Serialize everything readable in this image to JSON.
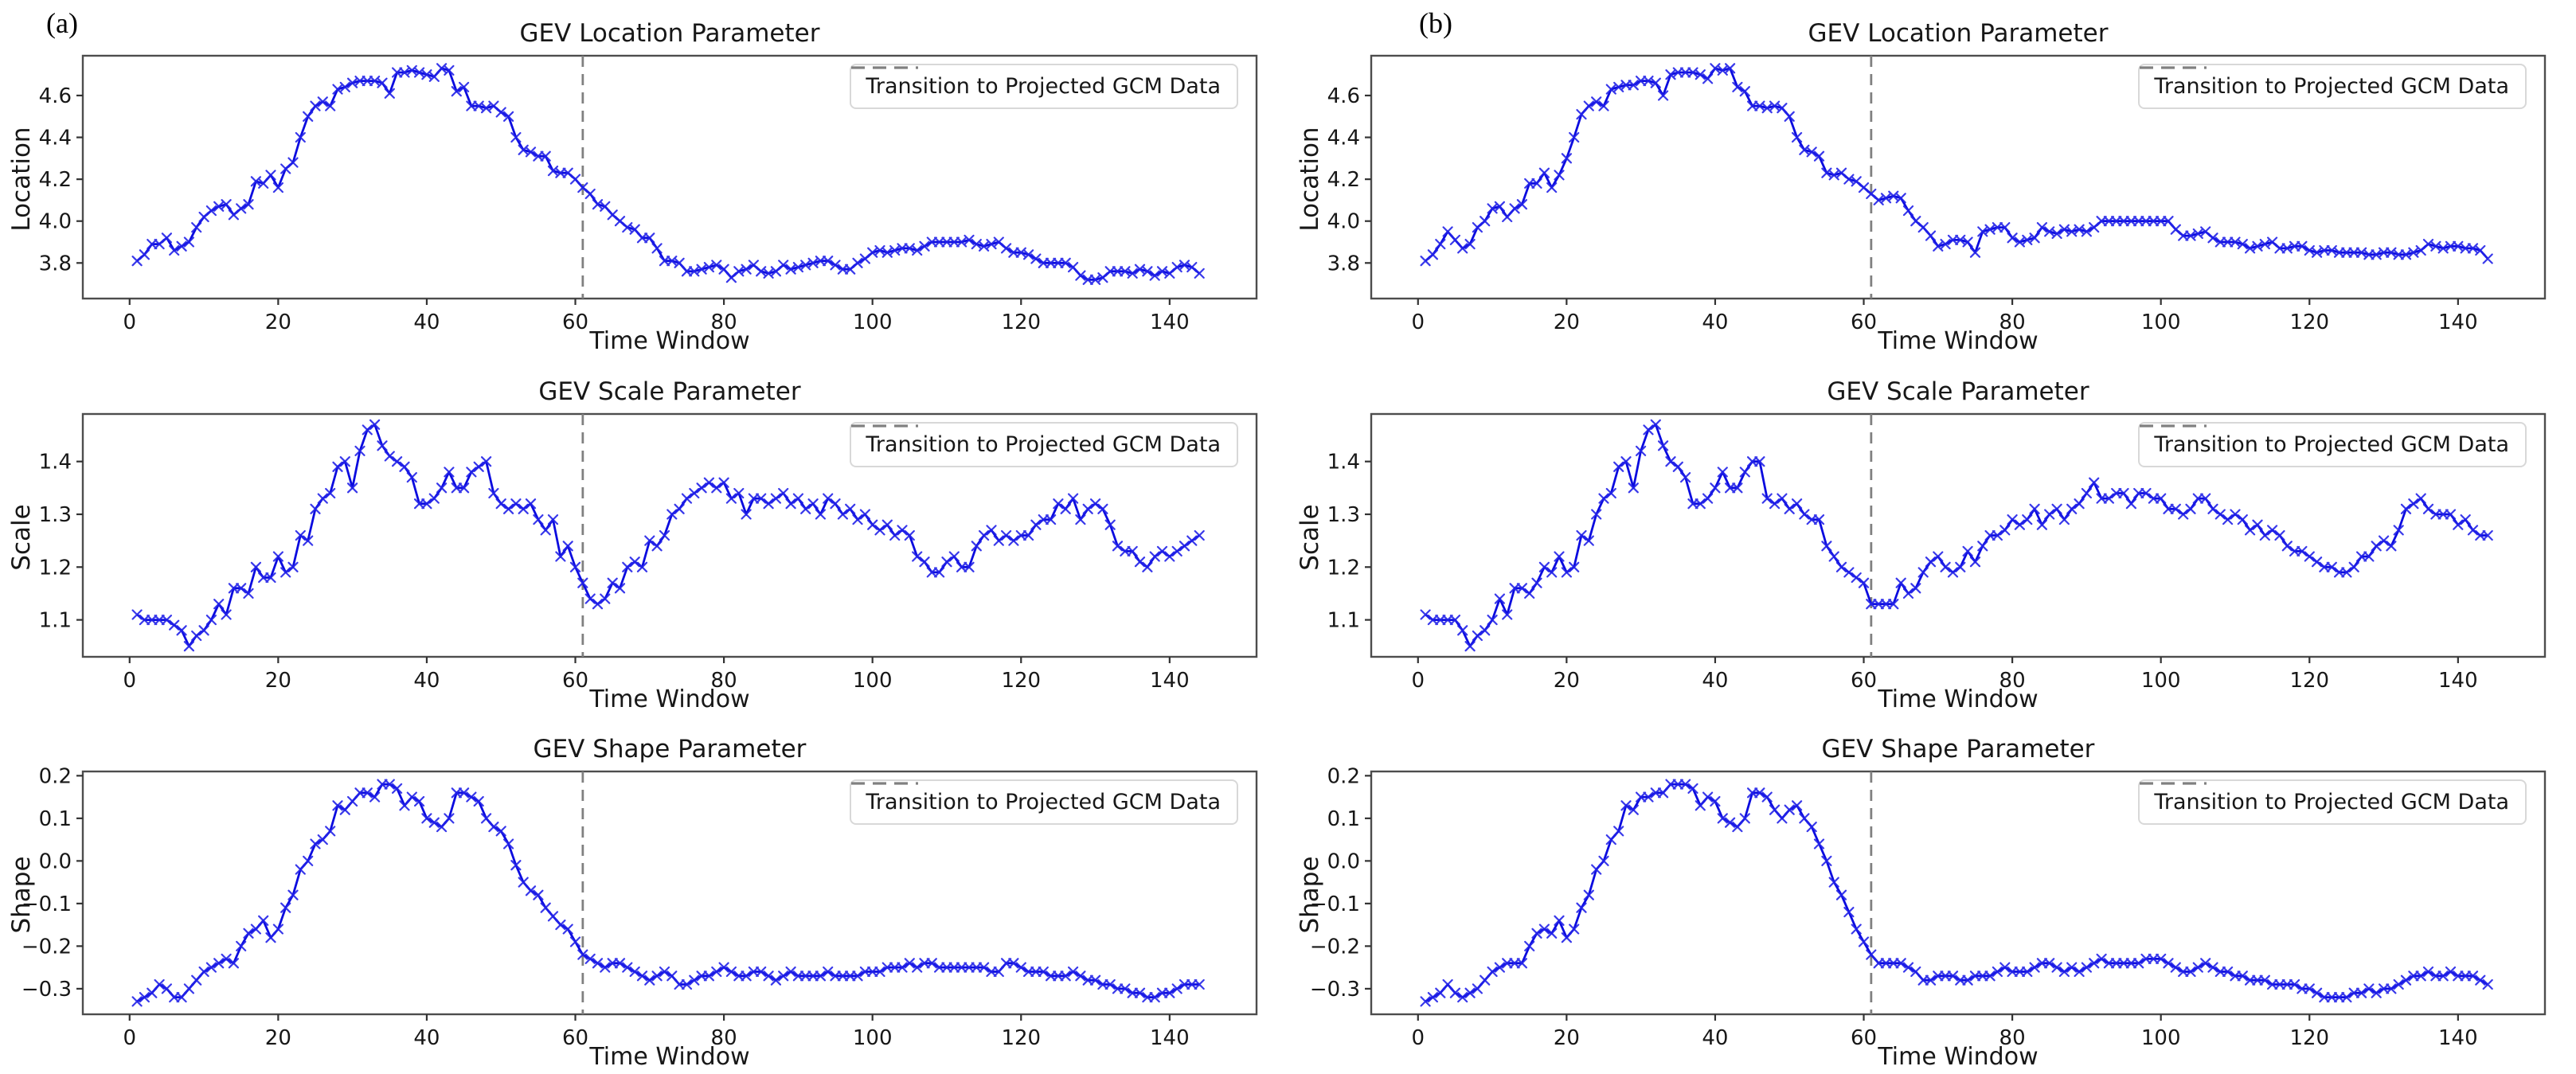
{
  "figure": {
    "background": "#ffffff",
    "panels": [
      {
        "label": "(a)"
      },
      {
        "label": "(b)"
      }
    ]
  },
  "legend": {
    "label": "Transition to Projected GCM Data"
  },
  "colors": {
    "line": "#0b0bdf",
    "marker": "#2222e8",
    "transition_line": "#808080",
    "spine": "#4d4d4d",
    "tick": "#333333",
    "text": "#171717",
    "legend_border": "#d8d8d8"
  },
  "chart_data": [
    {
      "type": "line",
      "panel": "(a)",
      "row": 0,
      "title": "GEV Location Parameter",
      "xlabel": "Time Window",
      "ylabel": "Location",
      "legend_label": "Transition to Projected GCM Data",
      "legend_position": "upper right",
      "marker": "x",
      "grid": false,
      "transition_x": 61,
      "xlim": [
        -6.3,
        151.7
      ],
      "ylim": [
        3.63,
        4.79
      ],
      "xticks": [
        0,
        20,
        40,
        60,
        80,
        100,
        120,
        140
      ],
      "yticks": [
        3.8,
        4.0,
        4.2,
        4.4,
        4.6
      ],
      "x_start": 1,
      "x_step": 1,
      "values": [
        3.81,
        3.84,
        3.89,
        3.89,
        3.92,
        3.86,
        3.88,
        3.9,
        3.97,
        4.02,
        4.05,
        4.07,
        4.08,
        4.03,
        4.06,
        4.08,
        4.19,
        4.18,
        4.22,
        4.16,
        4.25,
        4.28,
        4.4,
        4.5,
        4.55,
        4.57,
        4.55,
        4.63,
        4.64,
        4.66,
        4.67,
        4.67,
        4.67,
        4.66,
        4.61,
        4.71,
        4.71,
        4.72,
        4.71,
        4.7,
        4.69,
        4.73,
        4.72,
        4.62,
        4.64,
        4.55,
        4.55,
        4.54,
        4.55,
        4.52,
        4.5,
        4.4,
        4.34,
        4.33,
        4.31,
        4.31,
        4.24,
        4.23,
        4.23,
        4.2,
        4.16,
        4.13,
        4.08,
        4.07,
        4.03,
        4.0,
        3.97,
        3.96,
        3.92,
        3.92,
        3.87,
        3.81,
        3.81,
        3.8,
        3.76,
        3.76,
        3.77,
        3.78,
        3.79,
        3.77,
        3.73,
        3.76,
        3.77,
        3.79,
        3.76,
        3.75,
        3.76,
        3.79,
        3.77,
        3.78,
        3.79,
        3.8,
        3.81,
        3.81,
        3.79,
        3.77,
        3.77,
        3.8,
        3.82,
        3.85,
        3.86,
        3.85,
        3.86,
        3.87,
        3.87,
        3.86,
        3.88,
        3.9,
        3.9,
        3.9,
        3.9,
        3.9,
        3.91,
        3.89,
        3.88,
        3.89,
        3.9,
        3.87,
        3.85,
        3.85,
        3.84,
        3.82,
        3.8,
        3.8,
        3.8,
        3.8,
        3.78,
        3.74,
        3.72,
        3.72,
        3.73,
        3.76,
        3.76,
        3.76,
        3.75,
        3.77,
        3.76,
        3.74,
        3.76,
        3.75,
        3.78,
        3.79,
        3.78,
        3.75
      ]
    },
    {
      "type": "line",
      "panel": "(b)",
      "row": 0,
      "title": "GEV Location Parameter",
      "xlabel": "Time Window",
      "ylabel": "Location",
      "legend_label": "Transition to Projected GCM Data",
      "legend_position": "upper right",
      "marker": "x",
      "grid": false,
      "transition_x": 61,
      "xlim": [
        -6.3,
        151.7
      ],
      "ylim": [
        3.63,
        4.79
      ],
      "xticks": [
        0,
        20,
        40,
        60,
        80,
        100,
        120,
        140
      ],
      "yticks": [
        3.8,
        4.0,
        4.2,
        4.4,
        4.6
      ],
      "x_start": 1,
      "x_step": 1,
      "values": [
        3.81,
        3.84,
        3.89,
        3.95,
        3.91,
        3.87,
        3.89,
        3.97,
        4.0,
        4.06,
        4.07,
        4.02,
        4.06,
        4.08,
        4.18,
        4.18,
        4.23,
        4.16,
        4.22,
        4.3,
        4.4,
        4.51,
        4.55,
        4.57,
        4.55,
        4.63,
        4.64,
        4.65,
        4.65,
        4.67,
        4.67,
        4.66,
        4.6,
        4.7,
        4.71,
        4.71,
        4.71,
        4.7,
        4.68,
        4.73,
        4.72,
        4.73,
        4.64,
        4.62,
        4.55,
        4.55,
        4.54,
        4.55,
        4.54,
        4.5,
        4.4,
        4.34,
        4.33,
        4.31,
        4.23,
        4.22,
        4.23,
        4.2,
        4.19,
        4.16,
        4.13,
        4.1,
        4.11,
        4.12,
        4.11,
        4.05,
        4.0,
        3.97,
        3.93,
        3.88,
        3.89,
        3.91,
        3.91,
        3.9,
        3.85,
        3.95,
        3.96,
        3.97,
        3.97,
        3.92,
        3.9,
        3.91,
        3.92,
        3.97,
        3.95,
        3.94,
        3.96,
        3.95,
        3.96,
        3.95,
        3.97,
        4.0,
        4.0,
        4.0,
        4.0,
        4.0,
        4.0,
        4.0,
        4.0,
        4.0,
        4.0,
        3.96,
        3.93,
        3.93,
        3.94,
        3.95,
        3.92,
        3.9,
        3.9,
        3.9,
        3.89,
        3.87,
        3.88,
        3.89,
        3.9,
        3.87,
        3.87,
        3.88,
        3.88,
        3.86,
        3.85,
        3.86,
        3.86,
        3.85,
        3.85,
        3.85,
        3.85,
        3.84,
        3.84,
        3.85,
        3.85,
        3.84,
        3.84,
        3.85,
        3.86,
        3.89,
        3.88,
        3.87,
        3.88,
        3.88,
        3.87,
        3.87,
        3.86,
        3.82
      ]
    },
    {
      "type": "line",
      "panel": "(a)",
      "row": 1,
      "title": "GEV Scale Parameter",
      "xlabel": "Time Window",
      "ylabel": "Scale",
      "legend_label": "Transition to Projected GCM Data",
      "legend_position": "upper right",
      "marker": "x",
      "grid": false,
      "transition_x": 61,
      "xlim": [
        -6.3,
        151.7
      ],
      "ylim": [
        1.03,
        1.49
      ],
      "xticks": [
        0,
        20,
        40,
        60,
        80,
        100,
        120,
        140
      ],
      "yticks": [
        1.1,
        1.2,
        1.3,
        1.4
      ],
      "x_start": 1,
      "x_step": 1,
      "values": [
        1.11,
        1.1,
        1.1,
        1.1,
        1.1,
        1.09,
        1.08,
        1.05,
        1.07,
        1.08,
        1.1,
        1.13,
        1.11,
        1.16,
        1.16,
        1.15,
        1.2,
        1.18,
        1.18,
        1.22,
        1.19,
        1.2,
        1.26,
        1.25,
        1.31,
        1.33,
        1.34,
        1.39,
        1.4,
        1.35,
        1.42,
        1.46,
        1.47,
        1.43,
        1.41,
        1.4,
        1.39,
        1.37,
        1.32,
        1.32,
        1.33,
        1.35,
        1.38,
        1.35,
        1.35,
        1.38,
        1.39,
        1.4,
        1.34,
        1.32,
        1.31,
        1.32,
        1.31,
        1.32,
        1.29,
        1.27,
        1.29,
        1.22,
        1.24,
        1.2,
        1.17,
        1.14,
        1.13,
        1.14,
        1.17,
        1.16,
        1.2,
        1.21,
        1.2,
        1.25,
        1.24,
        1.26,
        1.3,
        1.31,
        1.33,
        1.34,
        1.35,
        1.36,
        1.35,
        1.36,
        1.33,
        1.34,
        1.3,
        1.33,
        1.33,
        1.32,
        1.33,
        1.34,
        1.32,
        1.33,
        1.31,
        1.32,
        1.3,
        1.33,
        1.32,
        1.3,
        1.31,
        1.29,
        1.3,
        1.28,
        1.27,
        1.28,
        1.26,
        1.27,
        1.26,
        1.22,
        1.21,
        1.19,
        1.19,
        1.21,
        1.22,
        1.2,
        1.2,
        1.24,
        1.26,
        1.27,
        1.25,
        1.26,
        1.25,
        1.26,
        1.26,
        1.28,
        1.29,
        1.29,
        1.32,
        1.31,
        1.33,
        1.29,
        1.31,
        1.32,
        1.31,
        1.28,
        1.24,
        1.23,
        1.23,
        1.21,
        1.2,
        1.22,
        1.23,
        1.22,
        1.23,
        1.24,
        1.25,
        1.26
      ]
    },
    {
      "type": "line",
      "panel": "(b)",
      "row": 1,
      "title": "GEV Scale Parameter",
      "xlabel": "Time Window",
      "ylabel": "Scale",
      "legend_label": "Transition to Projected GCM Data",
      "legend_position": "upper right",
      "marker": "x",
      "grid": false,
      "transition_x": 61,
      "xlim": [
        -6.3,
        151.7
      ],
      "ylim": [
        1.03,
        1.49
      ],
      "xticks": [
        0,
        20,
        40,
        60,
        80,
        100,
        120,
        140
      ],
      "yticks": [
        1.1,
        1.2,
        1.3,
        1.4
      ],
      "x_start": 1,
      "x_step": 1,
      "values": [
        1.11,
        1.1,
        1.1,
        1.1,
        1.1,
        1.08,
        1.05,
        1.07,
        1.08,
        1.1,
        1.14,
        1.11,
        1.16,
        1.16,
        1.15,
        1.17,
        1.2,
        1.19,
        1.22,
        1.19,
        1.2,
        1.26,
        1.25,
        1.3,
        1.33,
        1.34,
        1.39,
        1.4,
        1.35,
        1.42,
        1.46,
        1.47,
        1.43,
        1.4,
        1.39,
        1.37,
        1.32,
        1.32,
        1.33,
        1.35,
        1.38,
        1.35,
        1.35,
        1.38,
        1.4,
        1.4,
        1.33,
        1.32,
        1.33,
        1.31,
        1.32,
        1.3,
        1.29,
        1.29,
        1.24,
        1.22,
        1.2,
        1.19,
        1.18,
        1.17,
        1.13,
        1.13,
        1.13,
        1.13,
        1.17,
        1.15,
        1.16,
        1.19,
        1.21,
        1.22,
        1.2,
        1.19,
        1.2,
        1.23,
        1.21,
        1.24,
        1.26,
        1.26,
        1.27,
        1.29,
        1.28,
        1.29,
        1.31,
        1.28,
        1.3,
        1.31,
        1.29,
        1.31,
        1.32,
        1.34,
        1.36,
        1.33,
        1.33,
        1.34,
        1.34,
        1.32,
        1.34,
        1.34,
        1.33,
        1.33,
        1.31,
        1.31,
        1.3,
        1.31,
        1.33,
        1.33,
        1.31,
        1.3,
        1.29,
        1.3,
        1.29,
        1.27,
        1.28,
        1.26,
        1.27,
        1.26,
        1.24,
        1.23,
        1.23,
        1.22,
        1.21,
        1.2,
        1.2,
        1.19,
        1.19,
        1.2,
        1.22,
        1.22,
        1.24,
        1.25,
        1.24,
        1.27,
        1.31,
        1.32,
        1.33,
        1.31,
        1.3,
        1.3,
        1.3,
        1.28,
        1.29,
        1.27,
        1.26,
        1.26
      ]
    },
    {
      "type": "line",
      "panel": "(a)",
      "row": 2,
      "title": "GEV Shape Parameter",
      "xlabel": "Time Window",
      "ylabel": "Shape",
      "legend_label": "Transition to Projected GCM Data",
      "legend_position": "upper right",
      "marker": "x",
      "grid": false,
      "transition_x": 61,
      "xlim": [
        -6.3,
        151.7
      ],
      "ylim": [
        -0.36,
        0.21
      ],
      "xticks": [
        0,
        20,
        40,
        60,
        80,
        100,
        120,
        140
      ],
      "yticks": [
        0.2,
        0.1,
        0.0,
        -0.1,
        -0.2,
        -0.3
      ],
      "x_start": 1,
      "x_step": 1,
      "values": [
        -0.33,
        -0.32,
        -0.31,
        -0.29,
        -0.3,
        -0.32,
        -0.32,
        -0.3,
        -0.28,
        -0.26,
        -0.25,
        -0.24,
        -0.23,
        -0.24,
        -0.2,
        -0.17,
        -0.16,
        -0.14,
        -0.18,
        -0.16,
        -0.11,
        -0.08,
        -0.02,
        0.0,
        0.04,
        0.05,
        0.07,
        0.13,
        0.12,
        0.14,
        0.16,
        0.16,
        0.15,
        0.18,
        0.18,
        0.17,
        0.13,
        0.15,
        0.14,
        0.1,
        0.09,
        0.08,
        0.1,
        0.16,
        0.16,
        0.15,
        0.14,
        0.1,
        0.08,
        0.07,
        0.04,
        -0.01,
        -0.05,
        -0.07,
        -0.08,
        -0.11,
        -0.13,
        -0.15,
        -0.16,
        -0.19,
        -0.22,
        -0.23,
        -0.24,
        -0.25,
        -0.24,
        -0.24,
        -0.25,
        -0.26,
        -0.27,
        -0.28,
        -0.27,
        -0.26,
        -0.27,
        -0.29,
        -0.29,
        -0.28,
        -0.27,
        -0.27,
        -0.26,
        -0.25,
        -0.26,
        -0.27,
        -0.27,
        -0.26,
        -0.26,
        -0.27,
        -0.28,
        -0.27,
        -0.26,
        -0.27,
        -0.27,
        -0.27,
        -0.27,
        -0.26,
        -0.27,
        -0.27,
        -0.27,
        -0.27,
        -0.26,
        -0.26,
        -0.26,
        -0.25,
        -0.25,
        -0.25,
        -0.24,
        -0.25,
        -0.24,
        -0.24,
        -0.25,
        -0.25,
        -0.25,
        -0.25,
        -0.25,
        -0.25,
        -0.25,
        -0.26,
        -0.26,
        -0.24,
        -0.24,
        -0.25,
        -0.26,
        -0.26,
        -0.26,
        -0.27,
        -0.27,
        -0.27,
        -0.26,
        -0.27,
        -0.28,
        -0.28,
        -0.29,
        -0.29,
        -0.3,
        -0.3,
        -0.31,
        -0.31,
        -0.32,
        -0.32,
        -0.31,
        -0.31,
        -0.3,
        -0.29,
        -0.29,
        -0.29
      ]
    },
    {
      "type": "line",
      "panel": "(b)",
      "row": 2,
      "title": "GEV Shape Parameter",
      "xlabel": "Time Window",
      "ylabel": "Shape",
      "legend_label": "Transition to Projected GCM Data",
      "legend_position": "upper right",
      "marker": "x",
      "grid": false,
      "transition_x": 61,
      "xlim": [
        -6.3,
        151.7
      ],
      "ylim": [
        -0.36,
        0.21
      ],
      "xticks": [
        0,
        20,
        40,
        60,
        80,
        100,
        120,
        140
      ],
      "yticks": [
        0.2,
        0.1,
        0.0,
        -0.1,
        -0.2,
        -0.3
      ],
      "x_start": 1,
      "x_step": 1,
      "values": [
        -0.33,
        -0.32,
        -0.31,
        -0.29,
        -0.31,
        -0.32,
        -0.31,
        -0.3,
        -0.28,
        -0.26,
        -0.25,
        -0.24,
        -0.24,
        -0.24,
        -0.2,
        -0.17,
        -0.16,
        -0.17,
        -0.14,
        -0.18,
        -0.16,
        -0.11,
        -0.08,
        -0.02,
        0.0,
        0.05,
        0.07,
        0.13,
        0.12,
        0.15,
        0.15,
        0.16,
        0.16,
        0.18,
        0.18,
        0.18,
        0.17,
        0.13,
        0.15,
        0.14,
        0.1,
        0.09,
        0.08,
        0.1,
        0.16,
        0.16,
        0.15,
        0.12,
        0.1,
        0.12,
        0.13,
        0.1,
        0.08,
        0.04,
        0.0,
        -0.05,
        -0.08,
        -0.12,
        -0.16,
        -0.19,
        -0.22,
        -0.24,
        -0.24,
        -0.24,
        -0.24,
        -0.25,
        -0.26,
        -0.28,
        -0.28,
        -0.27,
        -0.27,
        -0.27,
        -0.28,
        -0.28,
        -0.27,
        -0.27,
        -0.27,
        -0.26,
        -0.25,
        -0.26,
        -0.26,
        -0.26,
        -0.25,
        -0.24,
        -0.24,
        -0.25,
        -0.26,
        -0.25,
        -0.26,
        -0.25,
        -0.24,
        -0.23,
        -0.24,
        -0.24,
        -0.24,
        -0.24,
        -0.24,
        -0.23,
        -0.23,
        -0.23,
        -0.24,
        -0.25,
        -0.26,
        -0.26,
        -0.25,
        -0.24,
        -0.25,
        -0.26,
        -0.26,
        -0.27,
        -0.27,
        -0.28,
        -0.28,
        -0.28,
        -0.29,
        -0.29,
        -0.29,
        -0.29,
        -0.3,
        -0.3,
        -0.31,
        -0.32,
        -0.32,
        -0.32,
        -0.32,
        -0.31,
        -0.31,
        -0.3,
        -0.31,
        -0.3,
        -0.3,
        -0.29,
        -0.28,
        -0.27,
        -0.27,
        -0.26,
        -0.27,
        -0.27,
        -0.26,
        -0.27,
        -0.27,
        -0.27,
        -0.28,
        -0.29
      ]
    }
  ]
}
